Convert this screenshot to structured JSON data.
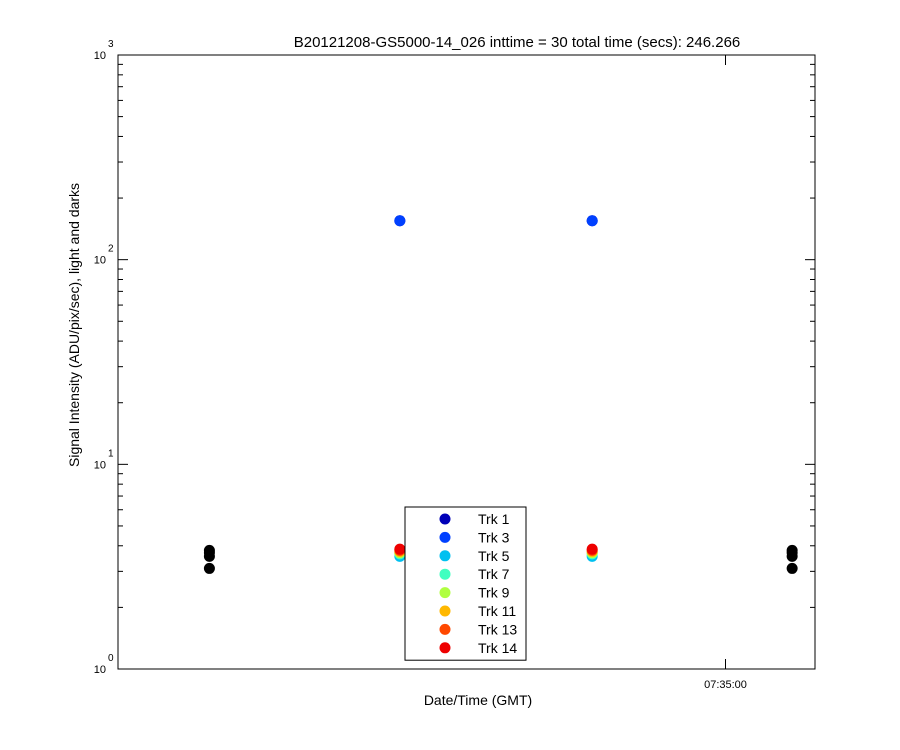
{
  "chart_data": {
    "type": "scatter",
    "title": "B20121208-GS5000-14_026 inttime = 30 total time (secs): 246.266",
    "xlabel": "Date/Time (GMT)",
    "ylabel": "Signal Intensity (ADU/pix/sec), light and darks",
    "y_scale": "log",
    "ylim": [
      1,
      1000
    ],
    "y_ticks": [
      {
        "value": 1,
        "base": "10",
        "exp": "0"
      },
      {
        "value": 10,
        "base": "10",
        "exp": "1"
      },
      {
        "value": 100,
        "base": "10",
        "exp": "2"
      },
      {
        "value": 1000,
        "base": "10",
        "exp": "3"
      }
    ],
    "xlim": [
      "07:29:41",
      "07:35:47"
    ],
    "x_ticks": [
      "07:35:00"
    ],
    "grid": false,
    "legend_position": "bottom-center",
    "dark_color": "#000000",
    "darks": [
      {
        "x": "07:30:29",
        "y": [
          3.1,
          3.55,
          3.7,
          3.8
        ]
      },
      {
        "x": "07:35:35",
        "y": [
          3.1,
          3.55,
          3.7,
          3.8
        ]
      }
    ],
    "lights_x": [
      "07:32:09",
      "07:33:50"
    ],
    "series": [
      {
        "name": "Trk 1",
        "color": "#0000b8",
        "values": [
          155,
          155
        ]
      },
      {
        "name": "Trk 3",
        "color": "#0040ff",
        "values": [
          155,
          155
        ]
      },
      {
        "name": "Trk 5",
        "color": "#00c0f0",
        "values": [
          3.55,
          3.55
        ]
      },
      {
        "name": "Trk 7",
        "color": "#40ffc0",
        "values": [
          3.65,
          3.65
        ]
      },
      {
        "name": "Trk 9",
        "color": "#b0ff40",
        "values": [
          3.7,
          3.7
        ]
      },
      {
        "name": "Trk 11",
        "color": "#ffb800",
        "values": [
          3.75,
          3.75
        ]
      },
      {
        "name": "Trk 13",
        "color": "#ff4800",
        "values": [
          3.8,
          3.8
        ]
      },
      {
        "name": "Trk 14",
        "color": "#ee0000",
        "values": [
          3.85,
          3.85
        ]
      }
    ]
  }
}
